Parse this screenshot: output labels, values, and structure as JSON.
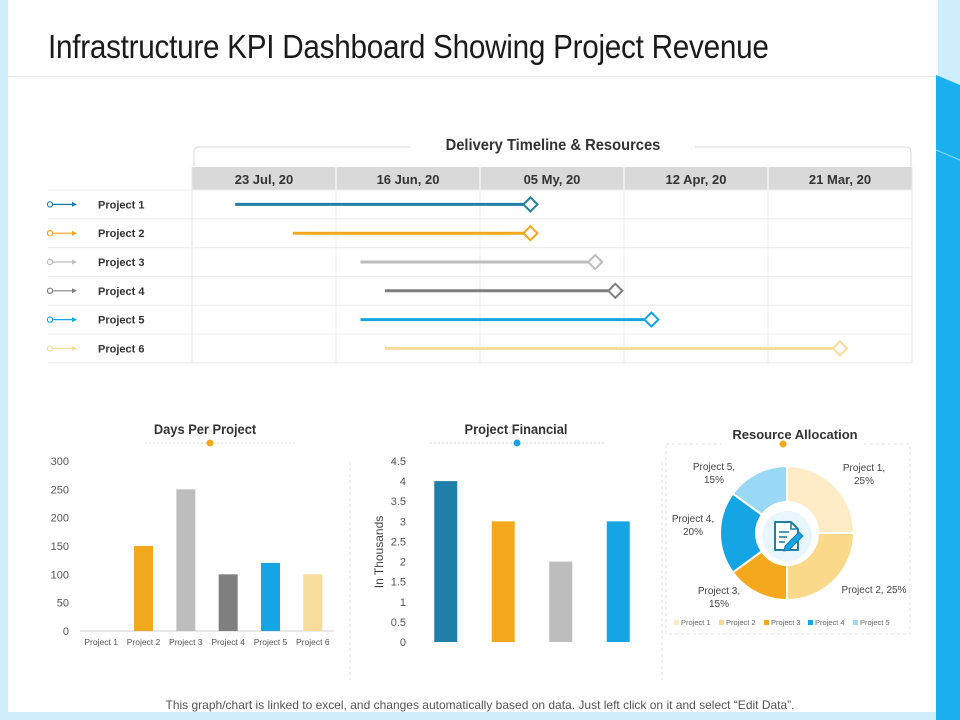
{
  "title": "Infrastructure KPI Dashboard Showing Project Revenue",
  "footer": "This graph/chart is linked to excel, and changes automatically based on data. Just left click on it and select “Edit Data”.",
  "colors": {
    "p1": "#1f7fa6",
    "p2": "#f4a81d",
    "p3": "#bdbdbd",
    "p4": "#7f7f7f",
    "p5": "#16a5e4",
    "p6": "#f8dc9c",
    "accent": "#1ab0ef"
  },
  "chart_data": [
    {
      "type": "gantt",
      "title": "Delivery Timeline & Resources",
      "columns": [
        "23 Jul, 20",
        "16 Jun, 20",
        "05 My, 20",
        "12 Apr, 20",
        "21 Mar, 20"
      ],
      "rows": [
        {
          "name": "Project 1",
          "start": 0.3,
          "end": 2.35
        },
        {
          "name": "Project 2",
          "start": 0.7,
          "end": 2.35
        },
        {
          "name": "Project 3",
          "start": 1.17,
          "end": 2.8
        },
        {
          "name": "Project 4",
          "start": 1.34,
          "end": 2.94
        },
        {
          "name": "Project 5",
          "start": 1.17,
          "end": 3.19
        },
        {
          "name": "Project 6",
          "start": 1.34,
          "end": 4.5
        }
      ]
    },
    {
      "type": "bar",
      "title": "Days Per Project",
      "categories": [
        "Project 1",
        "Project 2",
        "Project 3",
        "Project 4",
        "Project 5",
        "Project 6"
      ],
      "values": [
        0,
        150,
        250,
        100,
        120,
        100
      ],
      "yticks": [
        "0",
        "50",
        "100",
        "150",
        "200",
        "250",
        "300"
      ],
      "ylim": [
        0,
        300
      ],
      "xlabel": "",
      "ylabel": ""
    },
    {
      "type": "bar",
      "title": "Project Financial",
      "categories": [
        "",
        "",
        "",
        ""
      ],
      "values": [
        4,
        3,
        2,
        3
      ],
      "yticks": [
        "0",
        "0.5",
        "1",
        "1.5",
        "2",
        "2.5",
        "3",
        "3.5",
        "4",
        "4.5"
      ],
      "ylim": [
        0,
        4.5
      ],
      "xlabel": "",
      "ylabel": "In Thousands"
    },
    {
      "type": "pie",
      "title": "Resource Allocation",
      "labels": [
        "Project 1",
        "Project 2",
        "Project 3",
        "Project 4",
        "Project 5"
      ],
      "values": [
        25,
        25,
        15,
        20,
        15
      ],
      "slice_labels": [
        [
          "Project 1,",
          "25%"
        ],
        [
          "Project 2, 25%"
        ],
        [
          "Project 3,",
          "15%"
        ],
        [
          "Project 4,",
          "20%"
        ],
        [
          "Project 5,",
          "15%"
        ]
      ],
      "legend": "bottom",
      "center_icon": "document-pen-icon"
    }
  ]
}
